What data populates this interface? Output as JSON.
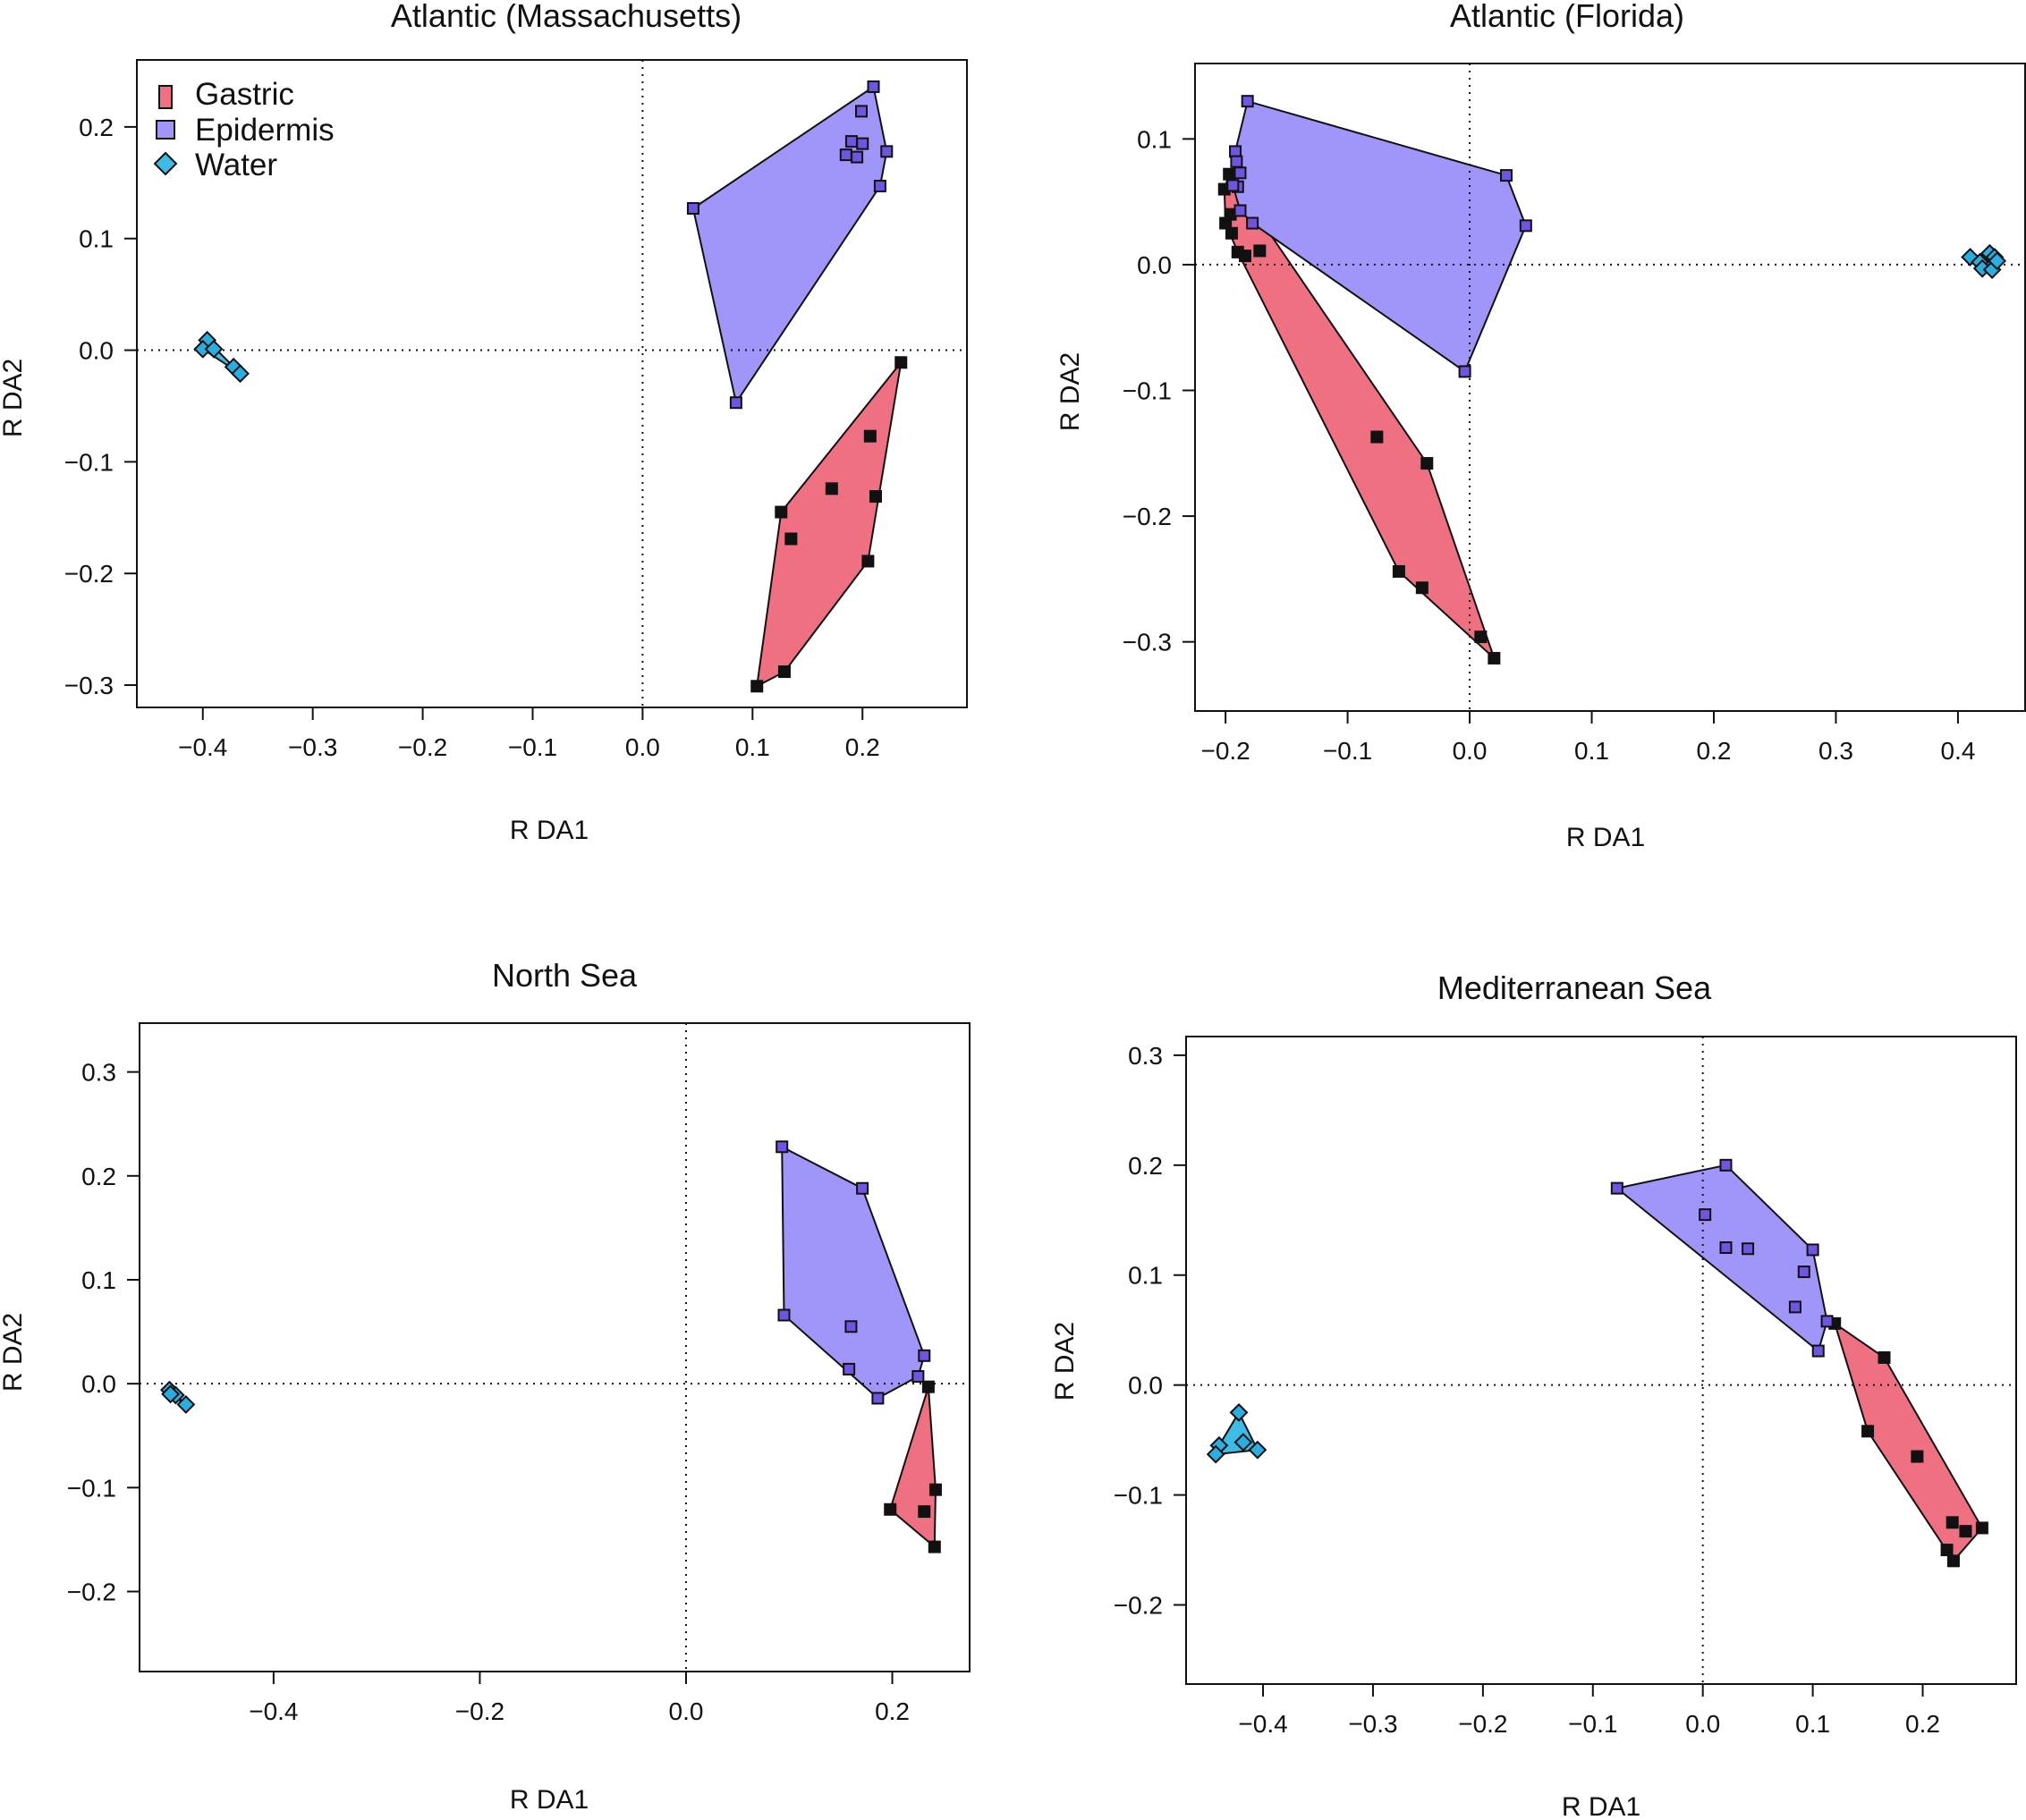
{
  "colors": {
    "gastric_fill": "#ef7080",
    "epidermis_fill": "#a096fa",
    "water_fill": "#3dbde6",
    "gastric_point": "#111111",
    "epidermis_point": "#7055e0",
    "water_point": "#2aaee0"
  },
  "legend": {
    "items": [
      {
        "label": "Gastric",
        "key": "gastric"
      },
      {
        "label": "Epidermis",
        "key": "epidermis"
      },
      {
        "label": "Water",
        "key": "water"
      }
    ]
  },
  "chart_data": [
    {
      "type": "scatter",
      "title": "Atlantic (Massachusetts)",
      "xlabel": "R DA1",
      "ylabel": "R DA2",
      "xlim": [
        -0.46,
        0.295
      ],
      "ylim": [
        -0.32,
        0.26
      ],
      "xticks": [
        -0.4,
        -0.3,
        -0.2,
        -0.1,
        0.0,
        0.1,
        0.2
      ],
      "xtick_labels": [
        "−0.4",
        "−0.3",
        "−0.2",
        "−0.1",
        "0.0",
        "0.1",
        "0.2"
      ],
      "yticks": [
        -0.3,
        -0.2,
        -0.1,
        0.0,
        0.1,
        0.2
      ],
      "ytick_labels": [
        "−0.3",
        "−0.2",
        "−0.1",
        "0.0",
        "0.1",
        "0.2"
      ],
      "series": [
        {
          "name": "Gastric",
          "key": "gastric",
          "marker": "square",
          "points": [
            [
              0.235,
              -0.011
            ],
            [
              0.207,
              -0.077
            ],
            [
              0.212,
              -0.131
            ],
            [
              0.172,
              -0.124
            ],
            [
              0.126,
              -0.145
            ],
            [
              0.135,
              -0.169
            ],
            [
              0.205,
              -0.189
            ],
            [
              0.129,
              -0.288
            ],
            [
              0.104,
              -0.301
            ]
          ]
        },
        {
          "name": "Epidermis",
          "key": "epidermis",
          "marker": "square",
          "points": [
            [
              0.21,
              0.236
            ],
            [
              0.199,
              0.214
            ],
            [
              0.19,
              0.187
            ],
            [
              0.2,
              0.185
            ],
            [
              0.185,
              0.175
            ],
            [
              0.195,
              0.173
            ],
            [
              0.222,
              0.178
            ],
            [
              0.216,
              0.147
            ],
            [
              0.046,
              0.127
            ],
            [
              0.085,
              -0.047
            ]
          ]
        },
        {
          "name": "Water",
          "key": "water",
          "marker": "diamond",
          "points": [
            [
              -0.396,
              0.009
            ],
            [
              -0.4,
              0.001
            ],
            [
              -0.39,
              0.001
            ],
            [
              -0.372,
              -0.015
            ],
            [
              -0.366,
              -0.021
            ]
          ]
        }
      ]
    },
    {
      "type": "scatter",
      "title": "Atlantic (Florida)",
      "xlabel": "R DA1",
      "ylabel": "R DA2",
      "xlim": [
        -0.225,
        0.455
      ],
      "ylim": [
        -0.355,
        0.16
      ],
      "xticks": [
        -0.2,
        -0.1,
        0.0,
        0.1,
        0.2,
        0.3,
        0.4
      ],
      "xtick_labels": [
        "−0.2",
        "−0.1",
        "0.0",
        "0.1",
        "0.2",
        "0.3",
        "0.4"
      ],
      "yticks": [
        -0.3,
        -0.2,
        -0.1,
        0.0,
        0.1
      ],
      "ytick_labels": [
        "−0.3",
        "−0.2",
        "−0.1",
        "0.0",
        "0.1"
      ],
      "series": [
        {
          "name": "Gastric",
          "key": "gastric",
          "marker": "square",
          "points": [
            [
              -0.201,
              0.06
            ],
            [
              -0.197,
              0.072
            ],
            [
              -0.196,
              0.04
            ],
            [
              -0.2,
              0.033
            ],
            [
              -0.195,
              0.025
            ],
            [
              -0.19,
              0.01
            ],
            [
              -0.184,
              0.007
            ],
            [
              -0.172,
              0.011
            ],
            [
              -0.076,
              -0.137
            ],
            [
              -0.035,
              -0.158
            ],
            [
              -0.058,
              -0.244
            ],
            [
              -0.039,
              -0.257
            ],
            [
              0.009,
              -0.296
            ],
            [
              0.02,
              -0.313
            ]
          ]
        },
        {
          "name": "Epidermis",
          "key": "epidermis",
          "marker": "square",
          "points": [
            [
              -0.182,
              0.13
            ],
            [
              -0.192,
              0.09
            ],
            [
              -0.191,
              0.082
            ],
            [
              -0.188,
              0.073
            ],
            [
              -0.19,
              0.062
            ],
            [
              -0.194,
              0.063
            ],
            [
              -0.188,
              0.043
            ],
            [
              -0.178,
              0.033
            ],
            [
              0.03,
              0.071
            ],
            [
              0.046,
              0.031
            ],
            [
              -0.004,
              -0.085
            ]
          ]
        },
        {
          "name": "Water",
          "key": "water",
          "marker": "diamond",
          "points": [
            [
              0.41,
              0.006
            ],
            [
              0.418,
              0.002
            ],
            [
              0.426,
              0.009
            ],
            [
              0.43,
              0.006
            ],
            [
              0.42,
              -0.003
            ],
            [
              0.428,
              -0.004
            ],
            [
              0.432,
              0.003
            ]
          ]
        }
      ]
    },
    {
      "type": "scatter",
      "title": "North Sea",
      "xlabel": "R DA1",
      "ylabel": "R DA2",
      "xlim": [
        -0.53,
        0.275
      ],
      "ylim": [
        -0.277,
        0.347
      ],
      "xticks": [
        -0.4,
        -0.2,
        0.0,
        0.2
      ],
      "xtick_labels": [
        "−0.4",
        "−0.2",
        "0.0",
        "0.2"
      ],
      "yticks": [
        -0.2,
        -0.1,
        0.0,
        0.1,
        0.2,
        0.3
      ],
      "ytick_labels": [
        "−0.2",
        "−0.1",
        "0.0",
        "0.1",
        "0.2",
        "0.3"
      ],
      "series": [
        {
          "name": "Gastric",
          "key": "gastric",
          "marker": "square",
          "points": [
            [
              0.235,
              -0.003
            ],
            [
              0.242,
              -0.102
            ],
            [
              0.198,
              -0.121
            ],
            [
              0.231,
              -0.123
            ],
            [
              0.241,
              -0.157
            ]
          ]
        },
        {
          "name": "Epidermis",
          "key": "epidermis",
          "marker": "square",
          "points": [
            [
              0.093,
              0.228
            ],
            [
              0.171,
              0.188
            ],
            [
              0.095,
              0.066
            ],
            [
              0.16,
              0.055
            ],
            [
              0.158,
              0.014
            ],
            [
              0.186,
              -0.014
            ],
            [
              0.231,
              0.027
            ],
            [
              0.225,
              0.007
            ]
          ]
        },
        {
          "name": "Water",
          "key": "water",
          "marker": "diamond",
          "points": [
            [
              -0.501,
              -0.006
            ],
            [
              -0.495,
              -0.011
            ],
            [
              -0.5,
              -0.01
            ],
            [
              -0.485,
              -0.02
            ]
          ]
        }
      ]
    },
    {
      "type": "scatter",
      "title": "Mediterranean Sea",
      "xlabel": "R DA1",
      "ylabel": "R DA2",
      "xlim": [
        -0.47,
        0.285
      ],
      "ylim": [
        -0.272,
        0.317
      ],
      "xticks": [
        -0.4,
        -0.3,
        -0.2,
        -0.1,
        0.0,
        0.1,
        0.2
      ],
      "xtick_labels": [
        "−0.4",
        "−0.3",
        "−0.2",
        "−0.1",
        "0.0",
        "0.1",
        "0.2"
      ],
      "yticks": [
        -0.2,
        -0.1,
        0.0,
        0.1,
        0.2,
        0.3
      ],
      "ytick_labels": [
        "−0.2",
        "−0.1",
        "0.0",
        "0.1",
        "0.2",
        "0.3"
      ],
      "series": [
        {
          "name": "Gastric",
          "key": "gastric",
          "marker": "square",
          "points": [
            [
              0.12,
              0.056
            ],
            [
              0.165,
              0.025
            ],
            [
              0.15,
              -0.042
            ],
            [
              0.195,
              -0.065
            ],
            [
              0.227,
              -0.125
            ],
            [
              0.239,
              -0.133
            ],
            [
              0.254,
              -0.13
            ],
            [
              0.222,
              -0.15
            ],
            [
              0.228,
              -0.16
            ]
          ]
        },
        {
          "name": "Epidermis",
          "key": "epidermis",
          "marker": "square",
          "points": [
            [
              0.021,
              0.2
            ],
            [
              -0.078,
              0.179
            ],
            [
              0.002,
              0.155
            ],
            [
              0.021,
              0.125
            ],
            [
              0.041,
              0.124
            ],
            [
              0.1,
              0.123
            ],
            [
              0.092,
              0.103
            ],
            [
              0.084,
              0.071
            ],
            [
              0.113,
              0.058
            ],
            [
              0.105,
              0.031
            ]
          ]
        },
        {
          "name": "Water",
          "key": "water",
          "marker": "diamond",
          "points": [
            [
              -0.422,
              -0.025
            ],
            [
              -0.44,
              -0.055
            ],
            [
              -0.443,
              -0.063
            ],
            [
              -0.418,
              -0.052
            ],
            [
              -0.405,
              -0.059
            ]
          ]
        }
      ]
    }
  ]
}
